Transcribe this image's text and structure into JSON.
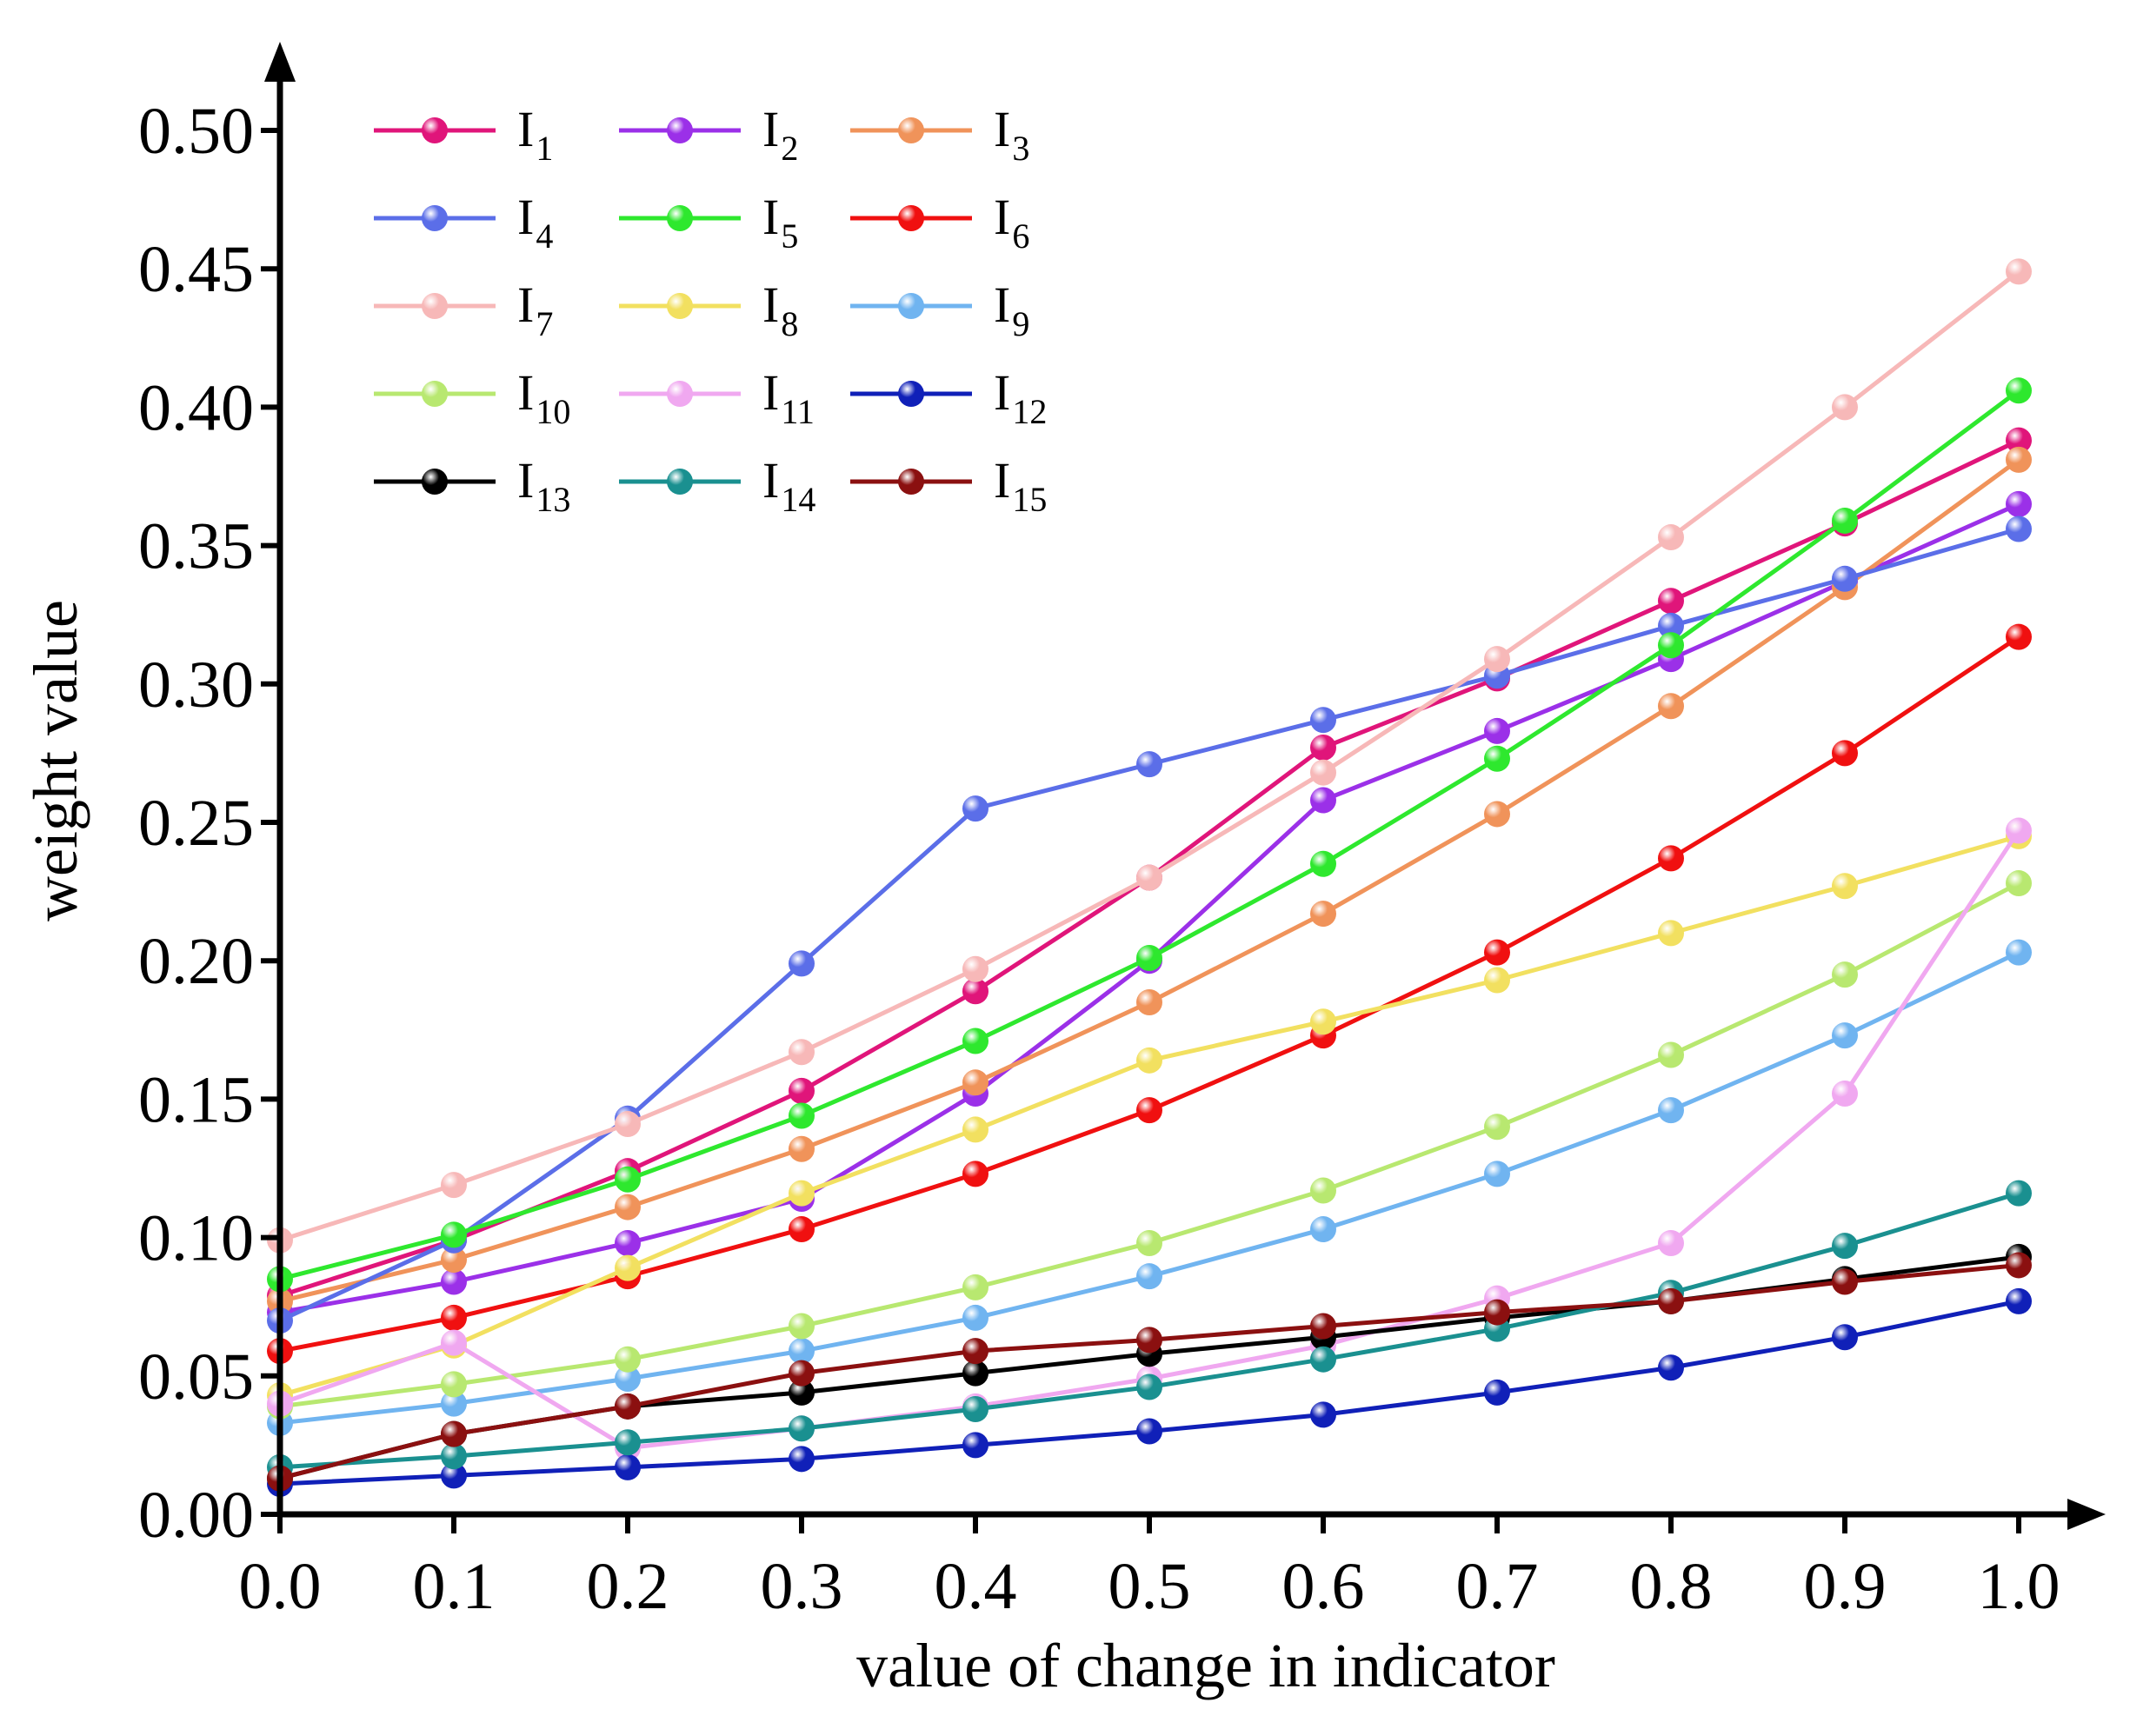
{
  "chart_data": {
    "type": "line",
    "title": "",
    "xlabel": "value of change in indicator",
    "ylabel": "weight value",
    "xlim": [
      0.0,
      1.0
    ],
    "ylim": [
      0.0,
      0.5
    ],
    "x": [
      0.0,
      0.1,
      0.2,
      0.3,
      0.4,
      0.5,
      0.6,
      0.7,
      0.8,
      0.9,
      1.0
    ],
    "x_tick_labels": [
      "0.0",
      "0.1",
      "0.2",
      "0.3",
      "0.4",
      "0.5",
      "0.6",
      "0.7",
      "0.8",
      "0.9",
      "1.0"
    ],
    "y_ticks": [
      0.0,
      0.05,
      0.1,
      0.15,
      0.2,
      0.25,
      0.3,
      0.35,
      0.4,
      0.45,
      0.5
    ],
    "y_tick_labels": [
      "0.00",
      "0.05",
      "0.10",
      "0.15",
      "0.20",
      "0.25",
      "0.30",
      "0.35",
      "0.40",
      "0.45",
      "0.50"
    ],
    "grid": false,
    "legend_position": "top-left",
    "series": [
      {
        "name": "I",
        "sub": "1",
        "color": "#e0157a",
        "values": [
          0.079,
          0.099,
          0.124,
          0.153,
          0.189,
          0.23,
          0.277,
          0.302,
          0.33,
          0.358,
          0.388
        ]
      },
      {
        "name": "I",
        "sub": "2",
        "color": "#9b30e8",
        "values": [
          0.073,
          0.084,
          0.098,
          0.114,
          0.152,
          0.2,
          0.258,
          0.283,
          0.309,
          0.337,
          0.365
        ]
      },
      {
        "name": "I",
        "sub": "3",
        "color": "#f0935a",
        "values": [
          0.077,
          0.092,
          0.111,
          0.132,
          0.156,
          0.185,
          0.217,
          0.253,
          0.292,
          0.335,
          0.381
        ]
      },
      {
        "name": "I",
        "sub": "4",
        "color": "#5b6ee8",
        "values": [
          0.07,
          0.099,
          0.143,
          0.199,
          0.255,
          0.271,
          0.287,
          0.303,
          0.321,
          0.338,
          0.356
        ]
      },
      {
        "name": "I",
        "sub": "5",
        "color": "#2ee82e",
        "values": [
          0.085,
          0.101,
          0.121,
          0.144,
          0.171,
          0.201,
          0.235,
          0.273,
          0.314,
          0.359,
          0.406
        ]
      },
      {
        "name": "I",
        "sub": "6",
        "color": "#f01010",
        "values": [
          0.059,
          0.071,
          0.086,
          0.103,
          0.123,
          0.146,
          0.173,
          0.203,
          0.237,
          0.275,
          0.317
        ]
      },
      {
        "name": "I",
        "sub": "7",
        "color": "#f7b8b8",
        "values": [
          0.099,
          0.119,
          0.141,
          0.167,
          0.197,
          0.23,
          0.268,
          0.309,
          0.353,
          0.4,
          0.449
        ]
      },
      {
        "name": "I",
        "sub": "8",
        "color": "#f2e060",
        "values": [
          0.043,
          0.061,
          0.089,
          0.116,
          0.139,
          0.164,
          0.178,
          0.193,
          0.21,
          0.227,
          0.245
        ]
      },
      {
        "name": "I",
        "sub": "9",
        "color": "#70b4f0",
        "values": [
          0.033,
          0.04,
          0.049,
          0.059,
          0.071,
          0.086,
          0.103,
          0.123,
          0.146,
          0.173,
          0.203
        ]
      },
      {
        "name": "I",
        "sub": "10",
        "color": "#b8e870",
        "values": [
          0.039,
          0.047,
          0.056,
          0.068,
          0.082,
          0.098,
          0.117,
          0.14,
          0.166,
          0.195,
          0.228
        ]
      },
      {
        "name": "I",
        "sub": "11",
        "color": "#f0a8f0",
        "values": [
          0.04,
          0.062,
          0.024,
          0.031,
          0.039,
          0.049,
          0.061,
          0.078,
          0.098,
          0.152,
          0.247
        ]
      },
      {
        "name": "I",
        "sub": "12",
        "color": "#1020b8",
        "values": [
          0.011,
          0.014,
          0.017,
          0.02,
          0.025,
          0.03,
          0.036,
          0.044,
          0.053,
          0.064,
          0.077
        ]
      },
      {
        "name": "I",
        "sub": "13",
        "color": "#000000",
        "values": [
          0.013,
          0.029,
          0.039,
          0.044,
          0.051,
          0.058,
          0.064,
          0.071,
          0.077,
          0.085,
          0.093
        ]
      },
      {
        "name": "I",
        "sub": "14",
        "color": "#1a9090",
        "values": [
          0.017,
          0.021,
          0.026,
          0.031,
          0.038,
          0.046,
          0.056,
          0.067,
          0.08,
          0.097,
          0.116
        ]
      },
      {
        "name": "I",
        "sub": "15",
        "color": "#8b1010",
        "values": [
          0.013,
          0.029,
          0.039,
          0.051,
          0.059,
          0.063,
          0.068,
          0.073,
          0.077,
          0.084,
          0.09
        ]
      }
    ]
  }
}
